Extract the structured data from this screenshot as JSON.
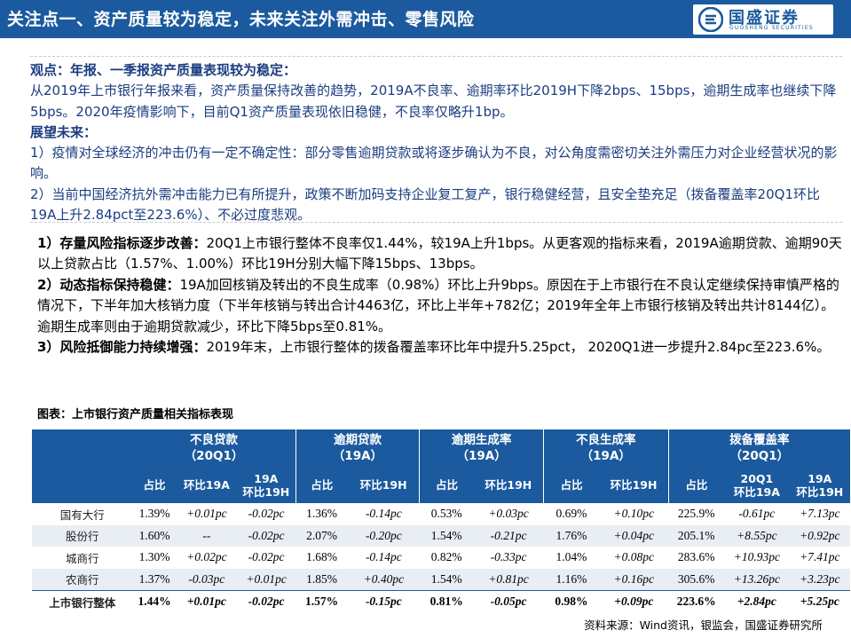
{
  "header": {
    "title": "关注点一、资产质量较为稳定，未来关注外需冲击、零售风险",
    "logo_cn": "国盛证券",
    "logo_en": "GUOSHENG SECURITIES",
    "bg_color": "#1b5a9e"
  },
  "viewpoint": {
    "heading": "观点：年报、一季报资产质量表现较为稳定：",
    "text1": "从2019年上市银行年报来看，资产质量保持改善的趋势，2019A不良率、逾期率环比2019H下降2bps、15bps，逾期生成率也继续下降5bps。2020年疫情影响下，目前Q1资产质量表现依旧稳健，不良率仅略升1bp。",
    "outlook_heading": "展望未来：",
    "outlook1": "1）疫情对全球经济的冲击仍有一定不确定性：部分零售逾期贷款或将逐步确认为不良，对公角度需密切关注外需压力对企业经营状况的影响。",
    "outlook2": "2）当前中国经济抗外需冲击能力已有所提升，政策不断加码支持企业复工复产，银行稳健经营，且安全垫充足（拨备覆盖率20Q1环比19A上升2.84pct至223.6%）、不必过度悲观。"
  },
  "points": [
    {
      "head": "1）存量风险指标逐步改善：",
      "body": "20Q1上市银行整体不良率仅1.44%，较19A上升1bps。从更客观的指标来看，2019A逾期贷款、逾期90天以上贷款占比（1.57%、1.00%）环比19H分别大幅下降15bps、13bps。"
    },
    {
      "head": "2）动态指标保持稳健：",
      "body": "19A加回核销及转出的不良生成率（0.98%）环比上升9bps。原因在于上市银行在不良认定继续保持审慎严格的情况下，下半年加大核销力度（下半年核销与转出合计4463亿，环比上半年+782亿；2019年全年上市银行核销及转出共计8144亿）。逾期生成率则由于逾期贷款减少，环比下降5bps至0.81%。"
    },
    {
      "head": "3）风险抵御能力持续增强：",
      "body": "2019年末，上市银行整体的拨备覆盖率环比年中提升5.25pct， 2020Q1进一步提升2.84pc至223.6%。"
    }
  ],
  "table": {
    "title": "图表：上市银行资产质量相关指标表现",
    "groups": [
      {
        "name": "不良贷款",
        "period": "（20Q1）"
      },
      {
        "name": "逾期贷款",
        "period": "（19A）"
      },
      {
        "name": "逾期生成率",
        "period": "（19A）"
      },
      {
        "name": "不良生成率",
        "period": "（19A）"
      },
      {
        "name": "拨备覆盖率",
        "period": "（20Q1）"
      }
    ],
    "subheaders": {
      "share": "占比",
      "qoq_19a": "环比19A",
      "h19a_line1": "19A",
      "h19a_line2": "环比19H",
      "qoq_19h": "环比19H",
      "prov_20q1_line1": "20Q1",
      "prov_20q1_line2": "环比19A",
      "prov_19a_line1": "19A",
      "prov_19a_line2": "环比19H"
    },
    "rows": [
      {
        "name": "国有大行",
        "cells": [
          "1.39%",
          "+0.01pc",
          "-0.02pc",
          "1.36%",
          "-0.14pc",
          "0.53%",
          "+0.03pc",
          "0.69%",
          "+0.10pc",
          "225.9%",
          "-0.61pc",
          "+7.13pc"
        ]
      },
      {
        "name": "股份行",
        "cells": [
          "1.60%",
          "--",
          "-0.02pc",
          "2.07%",
          "-0.20pc",
          "1.54%",
          "-0.21pc",
          "1.76%",
          "+0.04pc",
          "205.1%",
          "+8.55pc",
          "+0.92pc"
        ]
      },
      {
        "name": "城商行",
        "cells": [
          "1.30%",
          "+0.02pc",
          "-0.02pc",
          "1.68%",
          "-0.14pc",
          "0.82%",
          "-0.33pc",
          "1.04%",
          "+0.08pc",
          "283.6%",
          "+10.93pc",
          "+7.41pc"
        ]
      },
      {
        "name": "农商行",
        "cells": [
          "1.37%",
          "-0.03pc",
          "+0.01pc",
          "1.85%",
          "+0.40pc",
          "1.54%",
          "+0.81pc",
          "1.16%",
          "+0.16pc",
          "305.6%",
          "+13.26pc",
          "+3.23pc"
        ]
      },
      {
        "name": "上市银行整体",
        "cells": [
          "1.44%",
          "+0.01pc",
          "-0.02pc",
          "1.57%",
          "-0.15pc",
          "0.81%",
          "-0.05pc",
          "0.98%",
          "+0.09pc",
          "223.6%",
          "+2.84pc",
          "+5.25pc"
        ]
      }
    ]
  },
  "source": "资料来源：Wind资讯，银监会，国盛证券研究所"
}
